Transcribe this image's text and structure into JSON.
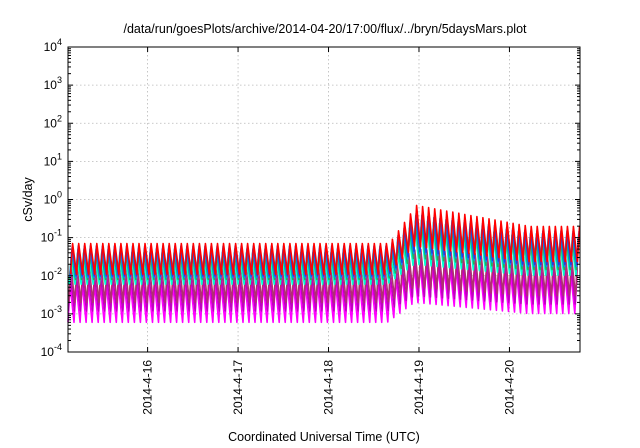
{
  "chart_data": {
    "type": "line",
    "title": "/data/run/goesPlots/archive/2014-04-20/17:00/flux/../bryn/5daysMars.plot",
    "xlabel": "Coordinated Universal Time (UTC)",
    "ylabel": "cSv/day",
    "y_scale": "log",
    "ylim_exponents": [
      -4,
      4
    ],
    "y_tick_exponents": [
      -4,
      -3,
      -2,
      -1,
      0,
      1,
      2,
      3,
      4
    ],
    "xlim_days": [
      15.12,
      20.78
    ],
    "x_ticks": [
      {
        "day": 16,
        "label": "2014-4-16"
      },
      {
        "day": 17,
        "label": "2014-4-17"
      },
      {
        "day": 18,
        "label": "2014-4-18"
      },
      {
        "day": 19,
        "label": "2014-4-19"
      },
      {
        "day": 20,
        "label": "2014-4-20"
      }
    ],
    "grid": true,
    "legend": "none",
    "oscillation": {
      "start_day": 15.12,
      "end_day": 20.78,
      "period_days": 0.0667
    },
    "event": {
      "onset_day": 18.65,
      "peak_day": 18.95,
      "decay_end_day": 20.2
    },
    "series": [
      {
        "color": "#ff00ff",
        "quiet_peak": 0.006,
        "quiet_trough": 0.0006,
        "event_peak": 0.02,
        "event_trough": 0.002
      },
      {
        "color": "#c000c0",
        "quiet_peak": 0.01,
        "quiet_trough": 0.0012,
        "event_peak": 0.03,
        "event_trough": 0.003
      },
      {
        "color": "#b03070",
        "quiet_peak": 0.02,
        "quiet_trough": 0.002,
        "event_peak": 0.05,
        "event_trough": 0.005
      },
      {
        "color": "#00ffd0",
        "quiet_peak": 0.025,
        "quiet_trough": 0.006,
        "event_peak": 0.2,
        "event_trough": 0.02
      },
      {
        "color": "#20b060",
        "quiet_peak": 0.04,
        "quiet_trough": 0.008,
        "event_peak": 0.3,
        "event_trough": 0.03
      },
      {
        "color": "#0090ff",
        "quiet_peak": 0.05,
        "quiet_trough": 0.009,
        "event_peak": 0.4,
        "event_trough": 0.04
      },
      {
        "color": "#2040e0",
        "quiet_peak": 0.06,
        "quiet_trough": 0.01,
        "event_peak": 0.45,
        "event_trough": 0.045
      },
      {
        "color": "#ff0000",
        "quiet_peak": 0.07,
        "quiet_trough": 0.011,
        "event_peak": 0.7,
        "event_trough": 0.06
      }
    ]
  }
}
